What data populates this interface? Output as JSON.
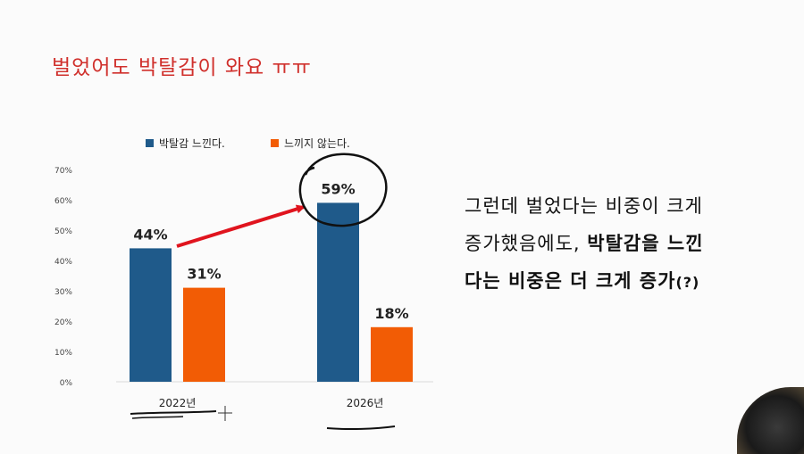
{
  "slide": {
    "title": "벌었어도 박탈감이 와요 ㅠㅠ"
  },
  "description": {
    "line1": "그런데 벌었다는 비중이 크게",
    "line2_plain": "증가했음에도, ",
    "line2_bold": "박탈감을 느낀",
    "line3_bold": "다는 비중은 더 크게 증가",
    "line3_tail": "(?)"
  },
  "chart_data": {
    "type": "bar",
    "categories": [
      "2022년",
      "2026년"
    ],
    "series": [
      {
        "name": "박탈감 느낀다.",
        "values": [
          44,
          59
        ],
        "color": "#1f5a8a"
      },
      {
        "name": "느끼지 않는다.",
        "values": [
          31,
          18
        ],
        "color": "#f25c05"
      }
    ],
    "data_labels": [
      [
        "44%",
        "59%"
      ],
      [
        "31%",
        "18%"
      ]
    ],
    "yticks": [
      "0%",
      "10%",
      "20%",
      "30%",
      "40%",
      "50%",
      "60%",
      "70%"
    ],
    "ylim": [
      0,
      70
    ],
    "legend": "top",
    "grid": false
  }
}
